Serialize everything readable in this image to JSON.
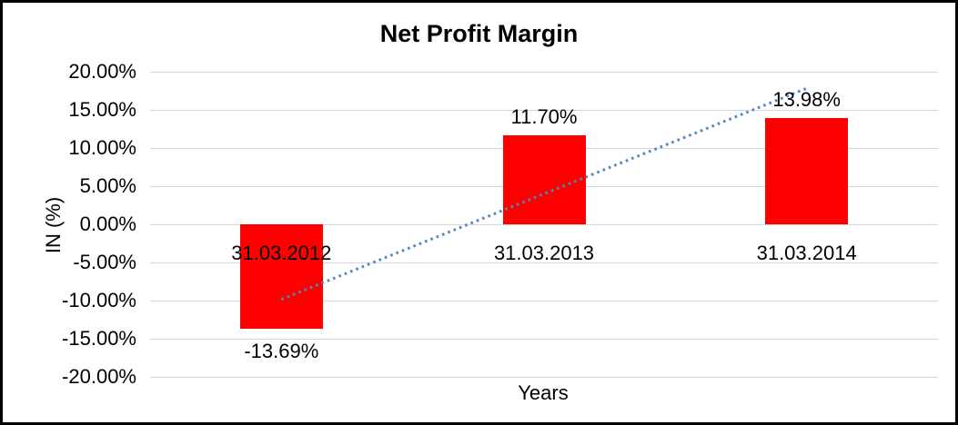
{
  "window": {
    "background_color": "#FFFFFF",
    "border_color": "#000000"
  },
  "chart_data": {
    "type": "bar",
    "title": "Net Profit Margin",
    "xlabel": "Years",
    "ylabel": "IN (%)",
    "categories": [
      "31.03.2012",
      "31.03.2013",
      "31.03.2014"
    ],
    "values": [
      -13.69,
      11.7,
      13.98
    ],
    "data_labels": [
      "-13.69%",
      "11.70%",
      "13.98%"
    ],
    "ylim": [
      -20,
      20
    ],
    "ytick_step": 5,
    "ytick_labels": [
      "20.00%",
      "15.00%",
      "10.00%",
      "5.00%",
      "0.00%",
      "-5.00%",
      "-10.00%",
      "-15.00%",
      "-20.00%"
    ],
    "grid": true,
    "legend": "none",
    "bar_color": "#FF0000",
    "gridline_color": "#D6D6D6",
    "text_color": "#000000",
    "trendline": {
      "type": "linear",
      "style": "dotted",
      "color": "#4E87C7",
      "start_value": -9.84,
      "end_value": 17.83
    }
  }
}
